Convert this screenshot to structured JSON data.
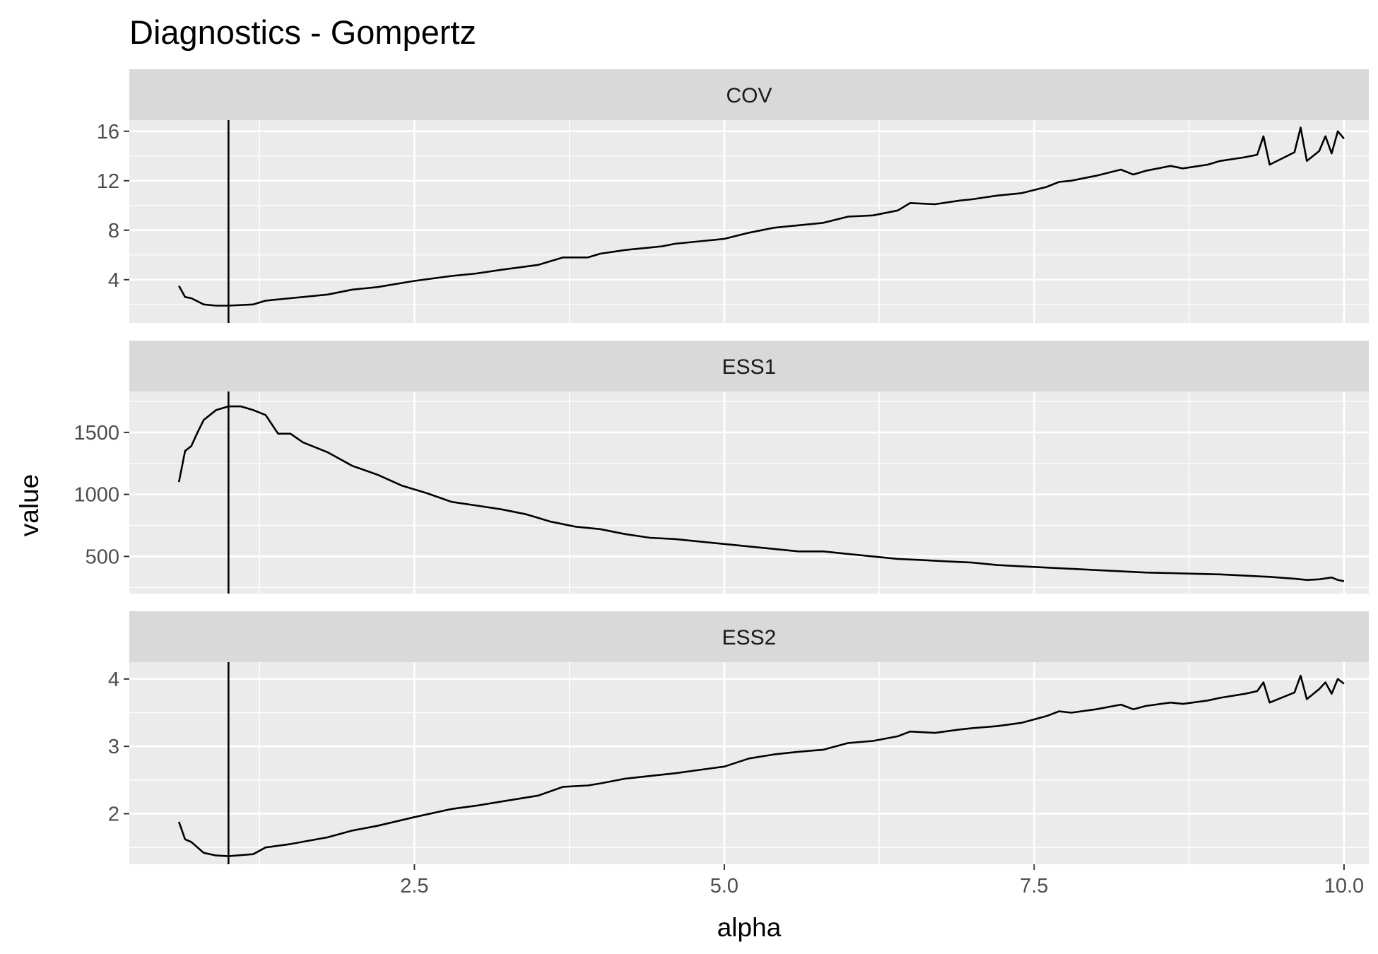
{
  "chart_data": {
    "type": "line",
    "title": "Diagnostics - Gompertz",
    "xlabel": "alpha",
    "ylabel": "value",
    "xlim": [
      0.2,
      10.2
    ],
    "x_ticks": [
      2.5,
      5.0,
      7.5,
      10.0
    ],
    "x_tick_labels": [
      "2.5",
      "5.0",
      "7.5",
      "10.0"
    ],
    "vline_x": 1.0,
    "grid": true,
    "colors": {
      "panel_bg": "#ebebeb",
      "strip_bg": "#d9d9d9",
      "grid": "#ffffff",
      "line": "#000000"
    },
    "panels": [
      {
        "label": "COV",
        "ylim": [
          0.5,
          16.9
        ],
        "y_ticks": [
          4,
          8,
          12,
          16
        ],
        "y_tick_labels": [
          "4",
          "8",
          "12",
          "16"
        ],
        "x": [
          0.6,
          0.65,
          0.7,
          0.8,
          0.9,
          1.0,
          1.2,
          1.3,
          1.5,
          1.8,
          2.0,
          2.2,
          2.5,
          2.8,
          3.0,
          3.2,
          3.5,
          3.7,
          3.9,
          4.0,
          4.2,
          4.4,
          4.5,
          4.6,
          4.8,
          5.0,
          5.2,
          5.4,
          5.5,
          5.6,
          5.8,
          6.0,
          6.2,
          6.4,
          6.5,
          6.7,
          6.9,
          7.0,
          7.2,
          7.4,
          7.6,
          7.7,
          7.8,
          8.0,
          8.2,
          8.3,
          8.4,
          8.6,
          8.7,
          8.9,
          9.0,
          9.2,
          9.3,
          9.35,
          9.4,
          9.6,
          9.65,
          9.7,
          9.8,
          9.85,
          9.9,
          9.95,
          10.0
        ],
        "y": [
          3.5,
          2.6,
          2.5,
          2.0,
          1.9,
          1.9,
          2.0,
          2.3,
          2.5,
          2.8,
          3.2,
          3.4,
          3.9,
          4.3,
          4.5,
          4.8,
          5.2,
          5.8,
          5.8,
          6.1,
          6.4,
          6.6,
          6.7,
          6.9,
          7.1,
          7.3,
          7.8,
          8.2,
          8.3,
          8.4,
          8.6,
          9.1,
          9.2,
          9.6,
          10.2,
          10.1,
          10.4,
          10.5,
          10.8,
          11.0,
          11.5,
          11.9,
          12.0,
          12.4,
          12.9,
          12.5,
          12.8,
          13.2,
          13.0,
          13.3,
          13.6,
          13.9,
          14.1,
          15.6,
          13.3,
          14.3,
          16.3,
          13.6,
          14.4,
          15.6,
          14.2,
          16.0,
          15.4
        ]
      },
      {
        "label": "ESS1",
        "ylim": [
          200,
          1830
        ],
        "y_ticks": [
          500,
          1000,
          1500
        ],
        "y_tick_labels": [
          "500",
          "1000",
          "1500"
        ],
        "x": [
          0.6,
          0.65,
          0.7,
          0.75,
          0.8,
          0.9,
          1.0,
          1.1,
          1.2,
          1.3,
          1.4,
          1.5,
          1.6,
          1.8,
          2.0,
          2.2,
          2.4,
          2.6,
          2.8,
          3.0,
          3.2,
          3.4,
          3.6,
          3.8,
          4.0,
          4.2,
          4.4,
          4.6,
          4.8,
          5.0,
          5.2,
          5.4,
          5.6,
          5.8,
          6.0,
          6.2,
          6.4,
          6.6,
          6.8,
          7.0,
          7.2,
          7.4,
          7.6,
          7.8,
          8.0,
          8.2,
          8.4,
          8.6,
          8.8,
          9.0,
          9.2,
          9.4,
          9.6,
          9.7,
          9.8,
          9.9,
          9.95,
          10.0
        ],
        "y": [
          1100,
          1350,
          1390,
          1500,
          1600,
          1680,
          1710,
          1710,
          1680,
          1640,
          1490,
          1490,
          1420,
          1340,
          1230,
          1160,
          1070,
          1010,
          940,
          910,
          880,
          840,
          780,
          740,
          720,
          680,
          650,
          640,
          620,
          600,
          580,
          560,
          540,
          540,
          520,
          500,
          480,
          470,
          460,
          450,
          430,
          420,
          410,
          400,
          390,
          380,
          370,
          365,
          360,
          355,
          345,
          335,
          320,
          310,
          315,
          330,
          310,
          300
        ]
      },
      {
        "label": "ESS2",
        "ylim": [
          1.25,
          4.25
        ],
        "y_ticks": [
          2,
          3,
          4
        ],
        "y_tick_labels": [
          "2",
          "3",
          "4"
        ],
        "x": [
          0.6,
          0.65,
          0.7,
          0.8,
          0.9,
          1.0,
          1.2,
          1.3,
          1.5,
          1.8,
          2.0,
          2.2,
          2.5,
          2.8,
          3.0,
          3.2,
          3.5,
          3.7,
          3.9,
          4.0,
          4.2,
          4.4,
          4.5,
          4.6,
          4.8,
          5.0,
          5.2,
          5.4,
          5.5,
          5.6,
          5.8,
          6.0,
          6.2,
          6.4,
          6.5,
          6.7,
          6.9,
          7.0,
          7.2,
          7.4,
          7.6,
          7.7,
          7.8,
          8.0,
          8.2,
          8.3,
          8.4,
          8.6,
          8.7,
          8.9,
          9.0,
          9.2,
          9.3,
          9.35,
          9.4,
          9.6,
          9.65,
          9.7,
          9.8,
          9.85,
          9.9,
          9.95,
          10.0
        ],
        "y": [
          1.88,
          1.62,
          1.58,
          1.42,
          1.38,
          1.37,
          1.4,
          1.5,
          1.55,
          1.65,
          1.75,
          1.82,
          1.95,
          2.07,
          2.12,
          2.18,
          2.27,
          2.4,
          2.42,
          2.45,
          2.52,
          2.56,
          2.58,
          2.6,
          2.65,
          2.7,
          2.82,
          2.88,
          2.9,
          2.92,
          2.95,
          3.05,
          3.08,
          3.15,
          3.22,
          3.2,
          3.25,
          3.27,
          3.3,
          3.35,
          3.45,
          3.52,
          3.5,
          3.55,
          3.62,
          3.55,
          3.6,
          3.65,
          3.63,
          3.68,
          3.72,
          3.78,
          3.82,
          3.95,
          3.65,
          3.8,
          4.05,
          3.7,
          3.85,
          3.95,
          3.78,
          4.0,
          3.93
        ]
      }
    ]
  }
}
